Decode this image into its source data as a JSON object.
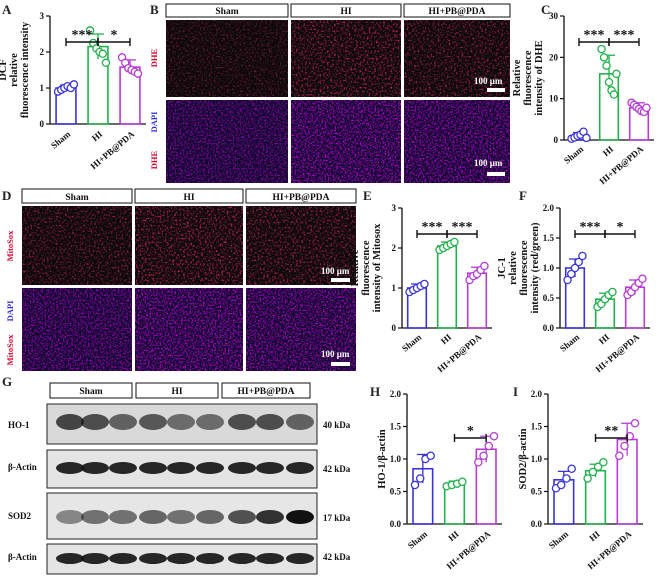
{
  "panel_letters": [
    "A",
    "B",
    "C",
    "D",
    "E",
    "F",
    "G",
    "H",
    "I"
  ],
  "colors": {
    "Sham": "#3a34d8",
    "HI": "#22b14c",
    "HI+PB@PDA": "#b63cd6",
    "axis": "#111111",
    "dhe": "#d4002a",
    "dapi": "#2b2bd8"
  },
  "micrograph_B": {
    "groups": [
      "Sham",
      "HI",
      "HI+PB@PDA"
    ],
    "rows": [
      {
        "channels": [
          "DHE"
        ]
      },
      {
        "channels": [
          "DAPI",
          "DHE"
        ]
      }
    ],
    "scale_bar": "100 μm"
  },
  "micrograph_D": {
    "groups": [
      "Sham",
      "HI",
      "HI+PB@PDA"
    ],
    "rows": [
      {
        "channels": [
          "MitoSox"
        ]
      },
      {
        "channels": [
          "DAPI",
          "MitoSox"
        ]
      }
    ],
    "scale_bar": "100 μm"
  },
  "western_G": {
    "groups": [
      "Sham",
      "HI",
      "HI+PB@PDA"
    ],
    "proteins": [
      "HO-1",
      "β-Actin",
      "SOD2",
      "β-Actin"
    ],
    "sizes": [
      "40 kDa",
      "42 kDa",
      "17 kDa",
      "42 kDa"
    ]
  },
  "chart_data": [
    {
      "panel": "A",
      "type": "bar",
      "categories": [
        "Sham",
        "HI",
        "HI+PB@PDA"
      ],
      "ylabel": "DCF relative fluorescence intensity",
      "ylim": [
        0,
        3
      ],
      "yticks": [
        0,
        1,
        2,
        3
      ],
      "values": [
        1.0,
        2.15,
        1.58
      ],
      "errors": [
        0.08,
        0.35,
        0.2
      ],
      "points": [
        [
          0.9,
          0.95,
          1.0,
          1.05,
          1.0,
          1.1
        ],
        [
          2.6,
          2.25,
          2.1,
          2.0,
          1.95,
          1.7
        ],
        [
          1.85,
          1.7,
          1.55,
          1.5,
          1.45,
          1.4
        ]
      ],
      "significance": [
        {
          "from": 0,
          "to": 1,
          "label": "***"
        },
        {
          "from": 1,
          "to": 2,
          "label": "*"
        }
      ]
    },
    {
      "panel": "C",
      "type": "bar",
      "categories": [
        "Sham",
        "HI",
        "HI+PB@PDA"
      ],
      "ylabel": "Relative fluorescence intensity of DHE",
      "ylim": [
        0,
        30
      ],
      "yticks": [
        0,
        10,
        20,
        30
      ],
      "values": [
        1.0,
        16.0,
        7.8
      ],
      "errors": [
        0.8,
        4.5,
        1.2
      ],
      "points": [
        [
          0.3,
          0.6,
          1.0,
          1.3,
          2.0,
          0.5
        ],
        [
          22,
          20,
          18,
          14,
          12,
          11,
          16
        ],
        [
          9,
          8.5,
          8,
          7.5,
          7,
          6.8,
          7.8
        ]
      ],
      "significance": [
        {
          "from": 0,
          "to": 1,
          "label": "***"
        },
        {
          "from": 1,
          "to": 2,
          "label": "***"
        }
      ]
    },
    {
      "panel": "E",
      "type": "bar",
      "categories": [
        "Sham",
        "HI",
        "HI+PB@PDA"
      ],
      "ylabel": "Relative fluorescence intensity of Mitosox",
      "ylim": [
        0,
        3
      ],
      "yticks": [
        0,
        1,
        2,
        3
      ],
      "values": [
        1.0,
        2.05,
        1.37
      ],
      "errors": [
        0.1,
        0.1,
        0.15
      ],
      "points": [
        [
          0.9,
          0.95,
          1.0,
          1.05,
          1.1
        ],
        [
          1.95,
          2.0,
          2.05,
          2.1,
          2.15
        ],
        [
          1.2,
          1.3,
          1.35,
          1.45,
          1.55
        ]
      ],
      "significance": [
        {
          "from": 0,
          "to": 1,
          "label": "***"
        },
        {
          "from": 1,
          "to": 2,
          "label": "***"
        }
      ]
    },
    {
      "panel": "F",
      "type": "bar",
      "categories": [
        "Sham",
        "HI",
        "HI+PB@PDA"
      ],
      "ylabel": "JC-1 relative fluorescence intensity (red/green)",
      "ylim": [
        0,
        2.0
      ],
      "yticks": [
        0,
        0.5,
        1.0,
        1.5,
        2.0
      ],
      "values": [
        1.0,
        0.48,
        0.68
      ],
      "errors": [
        0.15,
        0.1,
        0.12
      ],
      "points": [
        [
          0.8,
          0.9,
          1.0,
          1.1,
          1.2
        ],
        [
          0.35,
          0.4,
          0.48,
          0.55,
          0.6
        ],
        [
          0.55,
          0.6,
          0.68,
          0.75,
          0.82
        ]
      ],
      "significance": [
        {
          "from": 0,
          "to": 1,
          "label": "***"
        },
        {
          "from": 1,
          "to": 2,
          "label": "*"
        }
      ]
    },
    {
      "panel": "H",
      "type": "bar",
      "categories": [
        "Sham",
        "HI",
        "HI+PB@PDA"
      ],
      "ylabel": "HO-1/β-actin",
      "ylim": [
        0,
        2.0
      ],
      "yticks": [
        0,
        0.5,
        1.0,
        1.5,
        2.0
      ],
      "values": [
        0.85,
        0.62,
        1.15
      ],
      "errors": [
        0.22,
        0.04,
        0.2
      ],
      "points": [
        [
          0.6,
          0.7,
          1.0,
          1.05
        ],
        [
          0.58,
          0.6,
          0.62,
          0.65
        ],
        [
          0.95,
          1.05,
          1.2,
          1.35
        ]
      ],
      "significance": [
        {
          "from": 1,
          "to": 2,
          "label": "*"
        }
      ]
    },
    {
      "panel": "I",
      "type": "bar",
      "categories": [
        "Sham",
        "HI",
        "HI+PB@PDA"
      ],
      "ylabel": "SOD2/β-actin",
      "ylim": [
        0,
        2.0
      ],
      "yticks": [
        0,
        0.5,
        1.0,
        1.5,
        2.0
      ],
      "values": [
        0.68,
        0.82,
        1.3
      ],
      "errors": [
        0.13,
        0.1,
        0.25
      ],
      "points": [
        [
          0.55,
          0.6,
          0.7,
          0.85
        ],
        [
          0.7,
          0.8,
          0.88,
          0.95
        ],
        [
          1.05,
          1.2,
          1.35,
          1.55
        ]
      ],
      "significance": [
        {
          "from": 1,
          "to": 2,
          "label": "**"
        }
      ]
    }
  ]
}
